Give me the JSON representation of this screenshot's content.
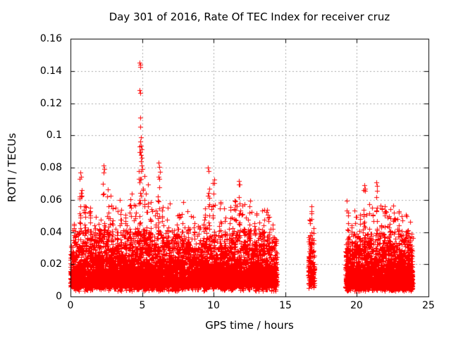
{
  "window": {
    "background_color": "#ffffff",
    "text_color": "#000000"
  },
  "chart_data": {
    "type": "scatter",
    "title": "Day 301 of 2016, Rate Of TEC Index for receiver cruz",
    "xlabel": "GPS time / hours",
    "ylabel": "ROTI / TECUs",
    "xlim": [
      0,
      25
    ],
    "ylim": [
      0,
      0.16
    ],
    "x_tick_values": [
      0,
      5,
      10,
      15,
      20,
      25
    ],
    "x_tick_labels": [
      "0",
      "5",
      "10",
      "15",
      "20",
      "25"
    ],
    "y_tick_values": [
      0,
      0.02,
      0.04,
      0.06,
      0.08,
      0.1,
      0.12,
      0.14,
      0.16
    ],
    "y_tick_labels": [
      "0",
      "0.02",
      "0.04",
      "0.06",
      "0.08",
      "0.1",
      "0.12",
      "0.14",
      "0.16"
    ],
    "grid": true,
    "grid_style": "dashed",
    "grid_color": "#a8a8a8",
    "border_color": "#000000",
    "legend": "none",
    "marker": "plus",
    "marker_color": "#ff0000",
    "marker_size_px": 7,
    "seed": 20161027,
    "series": [
      {
        "name": "ROTI",
        "description": "Dense noise band ~0.005-0.04 TECU with intermittent spikes; data gaps ~14.4-16.6h and ~17.05-19.2h",
        "segments": [
          {
            "x_start": 0.0,
            "x_end": 14.4,
            "n": 6400,
            "y_min": 0.006,
            "y_exp_mean": 0.011,
            "y_cap": 0.042,
            "tail_frac": 0.1,
            "tail_mean": 0.017,
            "tail_cap": 0.058,
            "floor_frac": 0.03,
            "floor_min": 0.0035
          },
          {
            "x_start": 16.6,
            "x_end": 17.05,
            "n": 160,
            "y_min": 0.007,
            "y_exp_mean": 0.013,
            "y_cap": 0.048,
            "tail_frac": 0.15,
            "tail_mean": 0.016,
            "tail_cap": 0.056,
            "floor_frac": 0.02,
            "floor_min": 0.005
          },
          {
            "x_start": 19.2,
            "x_end": 23.9,
            "n": 2700,
            "y_min": 0.005,
            "y_exp_mean": 0.01,
            "y_cap": 0.04,
            "tail_frac": 0.1,
            "tail_mean": 0.015,
            "tail_cap": 0.052,
            "floor_frac": 0.03,
            "floor_min": 0.0035
          }
        ],
        "spike_clusters": [
          {
            "x": 0.3,
            "top": 0.047,
            "n": 10
          },
          {
            "x": 0.7,
            "top": 0.074,
            "n": 16
          },
          {
            "x": 1.0,
            "top": 0.07,
            "n": 14
          },
          {
            "x": 1.35,
            "top": 0.065,
            "n": 14
          },
          {
            "x": 1.7,
            "top": 0.052,
            "n": 10
          },
          {
            "x": 2.05,
            "top": 0.056,
            "n": 10
          },
          {
            "x": 2.35,
            "top": 0.078,
            "n": 18
          },
          {
            "x": 2.6,
            "top": 0.07,
            "n": 14
          },
          {
            "x": 2.9,
            "top": 0.067,
            "n": 14
          },
          {
            "x": 3.2,
            "top": 0.06,
            "n": 12
          },
          {
            "x": 3.5,
            "top": 0.066,
            "n": 14
          },
          {
            "x": 3.8,
            "top": 0.056,
            "n": 10
          },
          {
            "x": 4.2,
            "top": 0.07,
            "n": 16
          },
          {
            "x": 4.5,
            "top": 0.06,
            "n": 12
          },
          {
            "x": 4.85,
            "top": 0.095,
            "n": 26
          },
          {
            "x": 5.1,
            "top": 0.082,
            "n": 18
          },
          {
            "x": 5.35,
            "top": 0.072,
            "n": 14
          },
          {
            "x": 5.6,
            "top": 0.064,
            "n": 12
          },
          {
            "x": 5.9,
            "top": 0.058,
            "n": 10
          },
          {
            "x": 6.15,
            "top": 0.08,
            "n": 18
          },
          {
            "x": 6.45,
            "top": 0.062,
            "n": 12
          },
          {
            "x": 6.8,
            "top": 0.055,
            "n": 10
          },
          {
            "x": 7.15,
            "top": 0.05,
            "n": 8
          },
          {
            "x": 7.5,
            "top": 0.054,
            "n": 10
          },
          {
            "x": 7.85,
            "top": 0.062,
            "n": 12
          },
          {
            "x": 8.2,
            "top": 0.055,
            "n": 10
          },
          {
            "x": 8.6,
            "top": 0.05,
            "n": 8
          },
          {
            "x": 9.0,
            "top": 0.048,
            "n": 8
          },
          {
            "x": 9.35,
            "top": 0.052,
            "n": 10
          },
          {
            "x": 9.65,
            "top": 0.078,
            "n": 18
          },
          {
            "x": 10.0,
            "top": 0.072,
            "n": 16
          },
          {
            "x": 10.45,
            "top": 0.062,
            "n": 12
          },
          {
            "x": 10.8,
            "top": 0.055,
            "n": 10
          },
          {
            "x": 11.2,
            "top": 0.058,
            "n": 10
          },
          {
            "x": 11.5,
            "top": 0.062,
            "n": 12
          },
          {
            "x": 11.78,
            "top": 0.07,
            "n": 16
          },
          {
            "x": 12.1,
            "top": 0.056,
            "n": 10
          },
          {
            "x": 12.5,
            "top": 0.06,
            "n": 12
          },
          {
            "x": 12.9,
            "top": 0.052,
            "n": 8
          },
          {
            "x": 13.2,
            "top": 0.056,
            "n": 10
          },
          {
            "x": 13.45,
            "top": 0.062,
            "n": 12
          },
          {
            "x": 13.8,
            "top": 0.054,
            "n": 10
          },
          {
            "x": 14.1,
            "top": 0.05,
            "n": 8
          },
          {
            "x": 16.8,
            "top": 0.052,
            "n": 8
          },
          {
            "x": 19.35,
            "top": 0.06,
            "n": 10
          },
          {
            "x": 19.6,
            "top": 0.054,
            "n": 8
          },
          {
            "x": 19.9,
            "top": 0.057,
            "n": 10
          },
          {
            "x": 20.2,
            "top": 0.063,
            "n": 12
          },
          {
            "x": 20.5,
            "top": 0.067,
            "n": 16
          },
          {
            "x": 20.8,
            "top": 0.06,
            "n": 10
          },
          {
            "x": 21.1,
            "top": 0.057,
            "n": 10
          },
          {
            "x": 21.4,
            "top": 0.068,
            "n": 14
          },
          {
            "x": 21.7,
            "top": 0.062,
            "n": 12
          },
          {
            "x": 22.0,
            "top": 0.059,
            "n": 10
          },
          {
            "x": 22.3,
            "top": 0.056,
            "n": 10
          },
          {
            "x": 22.6,
            "top": 0.058,
            "n": 10
          },
          {
            "x": 22.9,
            "top": 0.053,
            "n": 8
          },
          {
            "x": 23.2,
            "top": 0.051,
            "n": 8
          },
          {
            "x": 23.5,
            "top": 0.055,
            "n": 10
          },
          {
            "x": 23.75,
            "top": 0.049,
            "n": 8
          }
        ],
        "notable_peaks": [
          {
            "x": 4.83,
            "y": 0.145
          },
          {
            "x": 4.87,
            "y": 0.144
          },
          {
            "x": 4.85,
            "y": 0.1425
          },
          {
            "x": 4.84,
            "y": 0.128
          },
          {
            "x": 4.86,
            "y": 0.1262
          },
          {
            "x": 4.89,
            "y": 0.111
          },
          {
            "x": 4.87,
            "y": 0.1055
          },
          {
            "x": 4.91,
            "y": 0.099
          },
          {
            "x": 4.88,
            "y": 0.096
          },
          {
            "x": 4.93,
            "y": 0.0935
          },
          {
            "x": 4.95,
            "y": 0.0915
          },
          {
            "x": 4.9,
            "y": 0.088
          },
          {
            "x": 4.96,
            "y": 0.086
          },
          {
            "x": 4.92,
            "y": 0.084
          },
          {
            "x": 4.98,
            "y": 0.0815
          },
          {
            "x": 5.02,
            "y": 0.079
          },
          {
            "x": 2.33,
            "y": 0.0815
          },
          {
            "x": 2.36,
            "y": 0.079
          },
          {
            "x": 6.15,
            "y": 0.083
          },
          {
            "x": 6.18,
            "y": 0.0805
          },
          {
            "x": 9.62,
            "y": 0.08
          },
          {
            "x": 9.66,
            "y": 0.078
          },
          {
            "x": 0.68,
            "y": 0.077
          },
          {
            "x": 0.72,
            "y": 0.0745
          },
          {
            "x": 10.02,
            "y": 0.0725
          },
          {
            "x": 11.76,
            "y": 0.0715
          },
          {
            "x": 11.79,
            "y": 0.0695
          },
          {
            "x": 21.38,
            "y": 0.071
          },
          {
            "x": 21.41,
            "y": 0.0685
          },
          {
            "x": 20.52,
            "y": 0.069
          },
          {
            "x": 20.55,
            "y": 0.067
          },
          {
            "x": 20.49,
            "y": 0.066
          },
          {
            "x": 20.57,
            "y": 0.0655
          },
          {
            "x": 16.82,
            "y": 0.056
          },
          {
            "x": 16.85,
            "y": 0.053
          }
        ]
      }
    ]
  }
}
